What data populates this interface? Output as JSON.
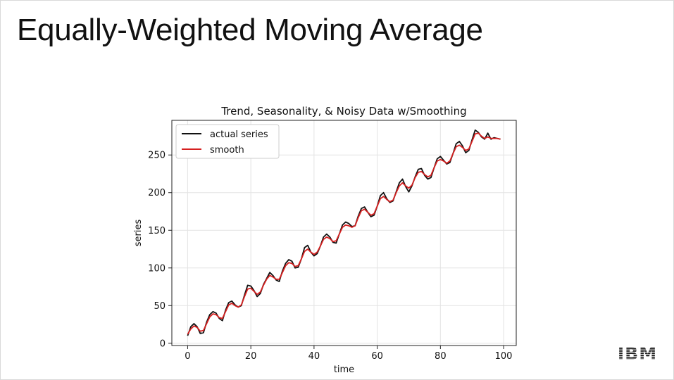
{
  "slide": {
    "title": "Equally-Weighted Moving Average",
    "logo_text": "IBM"
  },
  "chart_data": {
    "type": "line",
    "title": "Trend, Seasonality, & Noisy Data w/Smoothing",
    "xlabel": "time",
    "ylabel": "series",
    "xlim": [
      -5,
      104
    ],
    "ylim": [
      -3,
      296
    ],
    "xticks": [
      0,
      20,
      40,
      60,
      80,
      100
    ],
    "yticks": [
      0,
      50,
      100,
      150,
      200,
      250
    ],
    "grid": true,
    "legend_position": "top-left",
    "series": [
      {
        "name": "actual series",
        "color": "#111111",
        "x": [
          0,
          1,
          2,
          3,
          4,
          5,
          6,
          7,
          8,
          9,
          10,
          11,
          12,
          13,
          14,
          15,
          16,
          17,
          18,
          19,
          20,
          21,
          22,
          23,
          24,
          25,
          26,
          27,
          28,
          29,
          30,
          31,
          32,
          33,
          34,
          35,
          36,
          37,
          38,
          39,
          40,
          41,
          42,
          43,
          44,
          45,
          46,
          47,
          48,
          49,
          50,
          51,
          52,
          53,
          54,
          55,
          56,
          57,
          58,
          59,
          60,
          61,
          62,
          63,
          64,
          65,
          66,
          67,
          68,
          69,
          70,
          71,
          72,
          73,
          74,
          75,
          76,
          77,
          78,
          79,
          80,
          81,
          82,
          83,
          84,
          85,
          86,
          87,
          88,
          89,
          90,
          91,
          92,
          93,
          94,
          95,
          96,
          97,
          98,
          99
        ],
        "y": [
          10,
          22,
          26,
          22,
          13,
          14,
          28,
          38,
          42,
          40,
          33,
          30,
          44,
          54,
          56,
          51,
          48,
          50,
          64,
          77,
          76,
          70,
          62,
          66,
          78,
          86,
          94,
          90,
          84,
          82,
          96,
          106,
          111,
          109,
          100,
          101,
          112,
          127,
          130,
          121,
          116,
          119,
          129,
          141,
          145,
          141,
          134,
          133,
          145,
          157,
          161,
          159,
          155,
          156,
          169,
          179,
          181,
          174,
          168,
          170,
          182,
          196,
          200,
          192,
          187,
          189,
          201,
          213,
          218,
          208,
          201,
          209,
          221,
          231,
          232,
          223,
          218,
          220,
          233,
          245,
          248,
          243,
          238,
          240,
          252,
          265,
          268,
          262,
          253,
          256,
          270,
          283,
          280,
          274,
          271,
          279,
          271,
          273,
          272,
          271
        ],
        "y_note": "",
        "line_width": 1.8
      },
      {
        "name": "smooth",
        "color": "#d62020",
        "x": [
          0,
          1,
          2,
          3,
          4,
          5,
          6,
          7,
          8,
          9,
          10,
          11,
          12,
          13,
          14,
          15,
          16,
          17,
          18,
          19,
          20,
          21,
          22,
          23,
          24,
          25,
          26,
          27,
          28,
          29,
          30,
          31,
          32,
          33,
          34,
          35,
          36,
          37,
          38,
          39,
          40,
          41,
          42,
          43,
          44,
          45,
          46,
          47,
          48,
          49,
          50,
          51,
          52,
          53,
          54,
          55,
          56,
          57,
          58,
          59,
          60,
          61,
          62,
          63,
          64,
          65,
          66,
          67,
          68,
          69,
          70,
          71,
          72,
          73,
          74,
          75,
          76,
          77,
          78,
          79,
          80,
          81,
          82,
          83,
          84,
          85,
          86,
          87,
          88,
          89,
          90,
          91,
          92,
          93,
          94,
          95,
          96,
          97,
          98,
          99
        ],
        "y": [
          12,
          19,
          23,
          21,
          16,
          17,
          26,
          35,
          39,
          38,
          34,
          33,
          42,
          51,
          53,
          50,
          48,
          51,
          62,
          72,
          73,
          69,
          65,
          68,
          77,
          85,
          90,
          88,
          85,
          85,
          94,
          103,
          107,
          106,
          102,
          103,
          112,
          122,
          125,
          121,
          118,
          121,
          129,
          138,
          141,
          139,
          135,
          136,
          145,
          154,
          157,
          156,
          154,
          156,
          167,
          176,
          178,
          174,
          170,
          172,
          182,
          192,
          195,
          191,
          188,
          190,
          200,
          209,
          213,
          209,
          206,
          210,
          220,
          227,
          228,
          224,
          221,
          223,
          233,
          242,
          244,
          242,
          239,
          242,
          252,
          261,
          263,
          260,
          256,
          258,
          268,
          278,
          279,
          275,
          272,
          274,
          272,
          272,
          272,
          271
        ],
        "line_width": 1.8
      }
    ]
  }
}
